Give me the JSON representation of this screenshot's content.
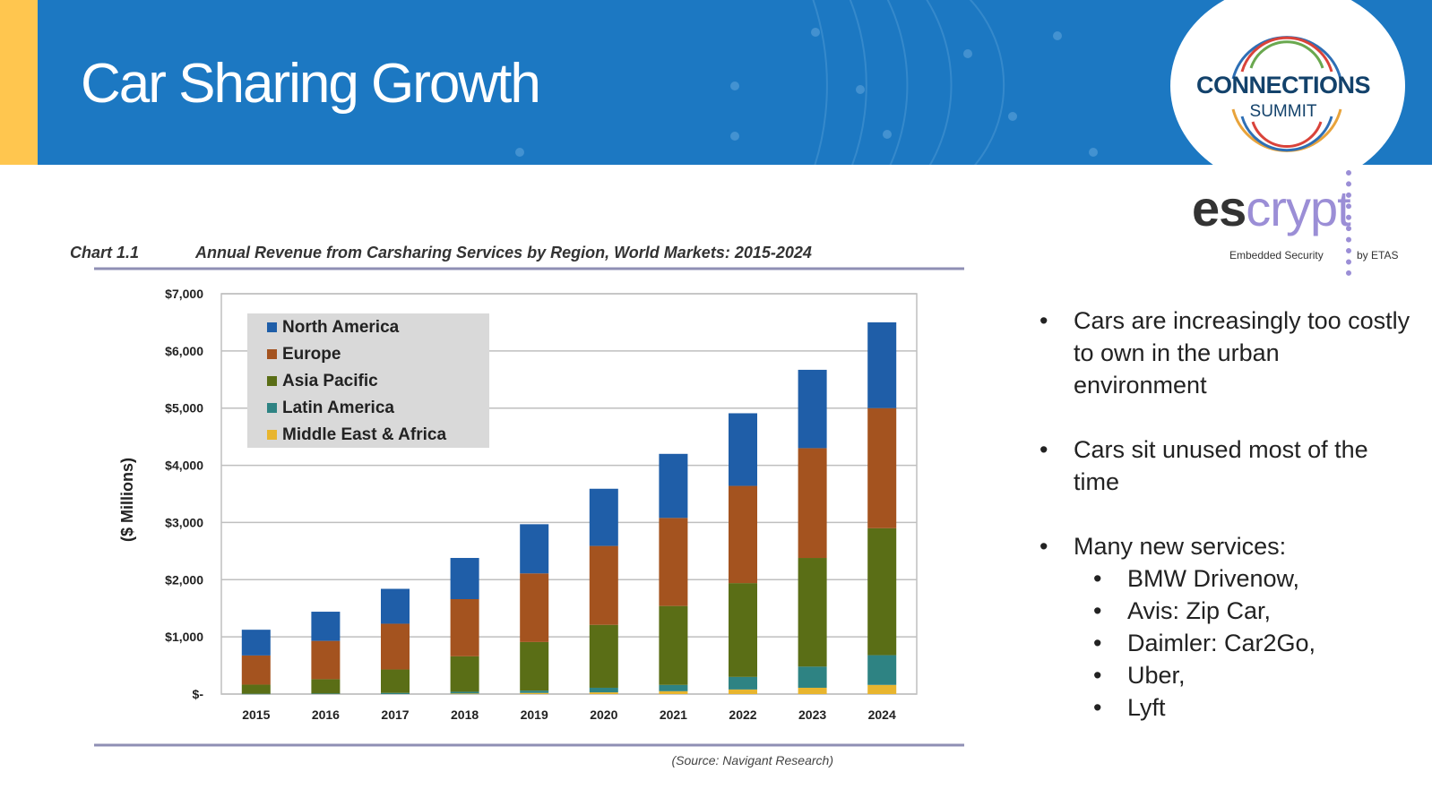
{
  "slide": {
    "title": "Car Sharing Growth"
  },
  "badge": {
    "name": "CONNECTIONS",
    "sub": "SUMMIT"
  },
  "logo": {
    "wordmark_es": "es",
    "wordmark_crypt": "crypt",
    "tagline": "Embedded Security",
    "by": "by ETAS"
  },
  "colors": {
    "header_blue": "#1c78c2",
    "accent_yellow": "#ffc64f",
    "north_america": "#1f5ea8",
    "europe": "#a4531f",
    "asia_pacific": "#5a6e16",
    "latin_america": "#2e8383",
    "middle_east_africa": "#e8b52e"
  },
  "chart_data": {
    "type": "bar",
    "stacked": true,
    "chart_label": "Chart 1.1",
    "title": "Annual Revenue from Carsharing Services by Region, World Markets: 2015-2024",
    "ylabel": "($ Millions)",
    "xlabel": "",
    "source": "(Source: Navigant Research)",
    "categories": [
      "2015",
      "2016",
      "2017",
      "2018",
      "2019",
      "2020",
      "2021",
      "2022",
      "2023",
      "2024"
    ],
    "ylim": [
      0,
      7000
    ],
    "yticks": [
      0,
      1000,
      2000,
      3000,
      4000,
      5000,
      6000,
      7000
    ],
    "ytick_labels": [
      "$-",
      "$1,000",
      "$2,000",
      "$3,000",
      "$4,000",
      "$5,000",
      "$6,000",
      "$7,000"
    ],
    "grid": true,
    "legend_position": "top-left",
    "series": [
      {
        "name": "Middle East & Africa",
        "values": [
          0,
          0,
          0,
          10,
          20,
          30,
          50,
          80,
          110,
          160
        ]
      },
      {
        "name": "Latin America",
        "values": [
          5,
          10,
          20,
          30,
          40,
          80,
          110,
          220,
          370,
          520
        ]
      },
      {
        "name": "Asia Pacific",
        "values": [
          160,
          250,
          410,
          620,
          850,
          1100,
          1380,
          1640,
          1900,
          2220
        ]
      },
      {
        "name": "Europe",
        "values": [
          510,
          670,
          800,
          1000,
          1200,
          1380,
          1540,
          1700,
          1920,
          2100
        ]
      },
      {
        "name": "North America",
        "values": [
          450,
          510,
          610,
          720,
          860,
          1000,
          1120,
          1270,
          1370,
          1500
        ]
      }
    ],
    "legend_order": [
      "North America",
      "Europe",
      "Asia Pacific",
      "Latin America",
      "Middle East & Africa"
    ]
  },
  "bullets": {
    "b1": "Cars are increasingly too costly to own in the urban environment",
    "b2": "Cars sit unused most of the time",
    "b3": "Many new services:",
    "services": [
      "BMW Drivenow,",
      "Avis: Zip Car,",
      "Daimler: Car2Go,",
      "Uber,",
      "Lyft"
    ]
  }
}
